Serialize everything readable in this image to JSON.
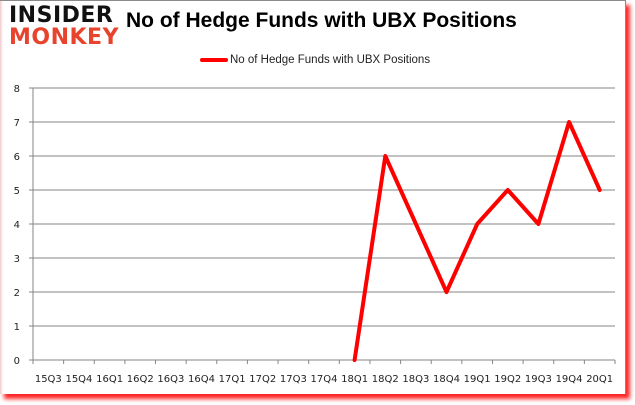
{
  "header": {
    "logo_line1": "INSIDER",
    "logo_line2": "MONKEY",
    "title": "No of Hedge Funds with UBX Positions"
  },
  "legend": {
    "label": "No of Hedge Funds with UBX Positions",
    "color": "#ff0000"
  },
  "colors": {
    "line": "#ff0000",
    "grid": "#868686",
    "frame_shadow": "#ff0000",
    "logo_dark": "#111111",
    "logo_red": "#e8432d"
  },
  "chart_data": {
    "type": "line",
    "title": "No of Hedge Funds with UBX Positions",
    "xlabel": "",
    "ylabel": "",
    "ylim": [
      0,
      8
    ],
    "yticks": [
      0,
      1,
      2,
      3,
      4,
      5,
      6,
      7,
      8
    ],
    "grid": true,
    "legend_position": "top",
    "categories": [
      "15Q3",
      "15Q4",
      "16Q1",
      "16Q2",
      "16Q3",
      "16Q4",
      "17Q1",
      "17Q2",
      "17Q3",
      "17Q4",
      "18Q1",
      "18Q2",
      "18Q3",
      "18Q4",
      "19Q1",
      "19Q2",
      "19Q3",
      "19Q4",
      "20Q1"
    ],
    "series": [
      {
        "name": "No of Hedge Funds with UBX Positions",
        "values": [
          null,
          null,
          null,
          null,
          null,
          null,
          null,
          null,
          null,
          null,
          0,
          6,
          4,
          2,
          4,
          5,
          4,
          7,
          5
        ]
      }
    ]
  }
}
